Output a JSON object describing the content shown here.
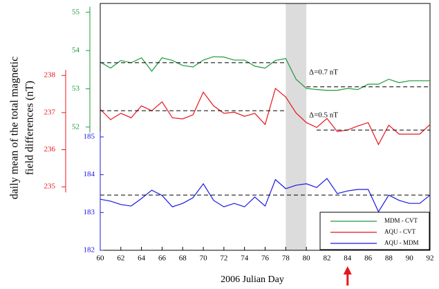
{
  "chart_data": {
    "type": "line",
    "xlabel": "2006 Julian Day",
    "ylabel": [
      "daily mean of the total magnetic",
      "field differences (nT)"
    ],
    "x": [
      60,
      61,
      62,
      63,
      64,
      65,
      66,
      67,
      68,
      69,
      70,
      71,
      72,
      73,
      74,
      75,
      76,
      77,
      78,
      79,
      80,
      81,
      82,
      83,
      84,
      85,
      86,
      87,
      88,
      89,
      90,
      91,
      92
    ],
    "xlim": [
      60,
      92
    ],
    "xticks": [
      60,
      62,
      64,
      66,
      68,
      70,
      72,
      74,
      76,
      78,
      80,
      82,
      84,
      86,
      88,
      90,
      92
    ],
    "shaded_span": [
      78,
      80
    ],
    "arrow_x": 84,
    "annotations": [
      "Δ=0.7 nT",
      "Δ=0.5 nT"
    ],
    "series": [
      {
        "name": "MDM - CVT",
        "color": "#1a9a3a",
        "ylim": [
          48.78,
          55.23
        ],
        "yticks": [
          52,
          53,
          54,
          55
        ],
        "values": [
          53.7,
          53.54,
          53.74,
          53.68,
          53.81,
          53.46,
          53.81,
          53.74,
          53.61,
          53.57,
          53.75,
          53.84,
          53.83,
          53.75,
          53.75,
          53.59,
          53.54,
          53.74,
          53.79,
          53.25,
          53.01,
          52.98,
          52.96,
          52.96,
          53.01,
          52.98,
          53.12,
          53.12,
          53.25,
          53.16,
          53.21,
          53.21,
          53.21
        ],
        "mean_lines": [
          {
            "x": [
              60,
              78
            ],
            "value": 53.68
          },
          {
            "x": [
              80,
              92
            ],
            "value": 53.05
          }
        ]
      },
      {
        "name": "AQU - CVT",
        "color": "#e8141c",
        "ylim": [
          233.29,
          239.94
        ],
        "yticks": [
          235,
          236,
          237,
          238
        ],
        "values": [
          237.09,
          236.81,
          236.98,
          236.86,
          237.18,
          237.05,
          237.29,
          236.86,
          236.83,
          236.94,
          237.55,
          237.18,
          236.98,
          237.01,
          236.9,
          236.98,
          236.68,
          237.65,
          237.42,
          236.99,
          236.73,
          236.6,
          236.84,
          236.49,
          236.53,
          236.64,
          236.73,
          236.14,
          236.66,
          236.42,
          236.42,
          236.42,
          236.68
        ],
        "mean_lines": [
          {
            "x": [
              60,
              78
            ],
            "value": 237.05
          },
          {
            "x": [
              81,
              92
            ],
            "value": 236.53
          }
        ]
      },
      {
        "name": "AQU - MDM",
        "color": "#1818e0",
        "ylim": [
          182,
          188.53
        ],
        "yticks": [
          182,
          183,
          184,
          185
        ],
        "values": [
          183.35,
          183.3,
          183.21,
          183.17,
          183.37,
          183.59,
          183.45,
          183.15,
          183.24,
          183.39,
          183.76,
          183.32,
          183.15,
          183.24,
          183.15,
          183.41,
          183.17,
          183.87,
          183.63,
          183.72,
          183.76,
          183.66,
          183.9,
          183.5,
          183.57,
          183.61,
          183.61,
          183.02,
          183.46,
          183.32,
          183.24,
          183.24,
          183.46
        ],
        "mean_lines": [
          {
            "x": [
              60,
              92
            ],
            "value": 183.46
          }
        ]
      }
    ]
  }
}
